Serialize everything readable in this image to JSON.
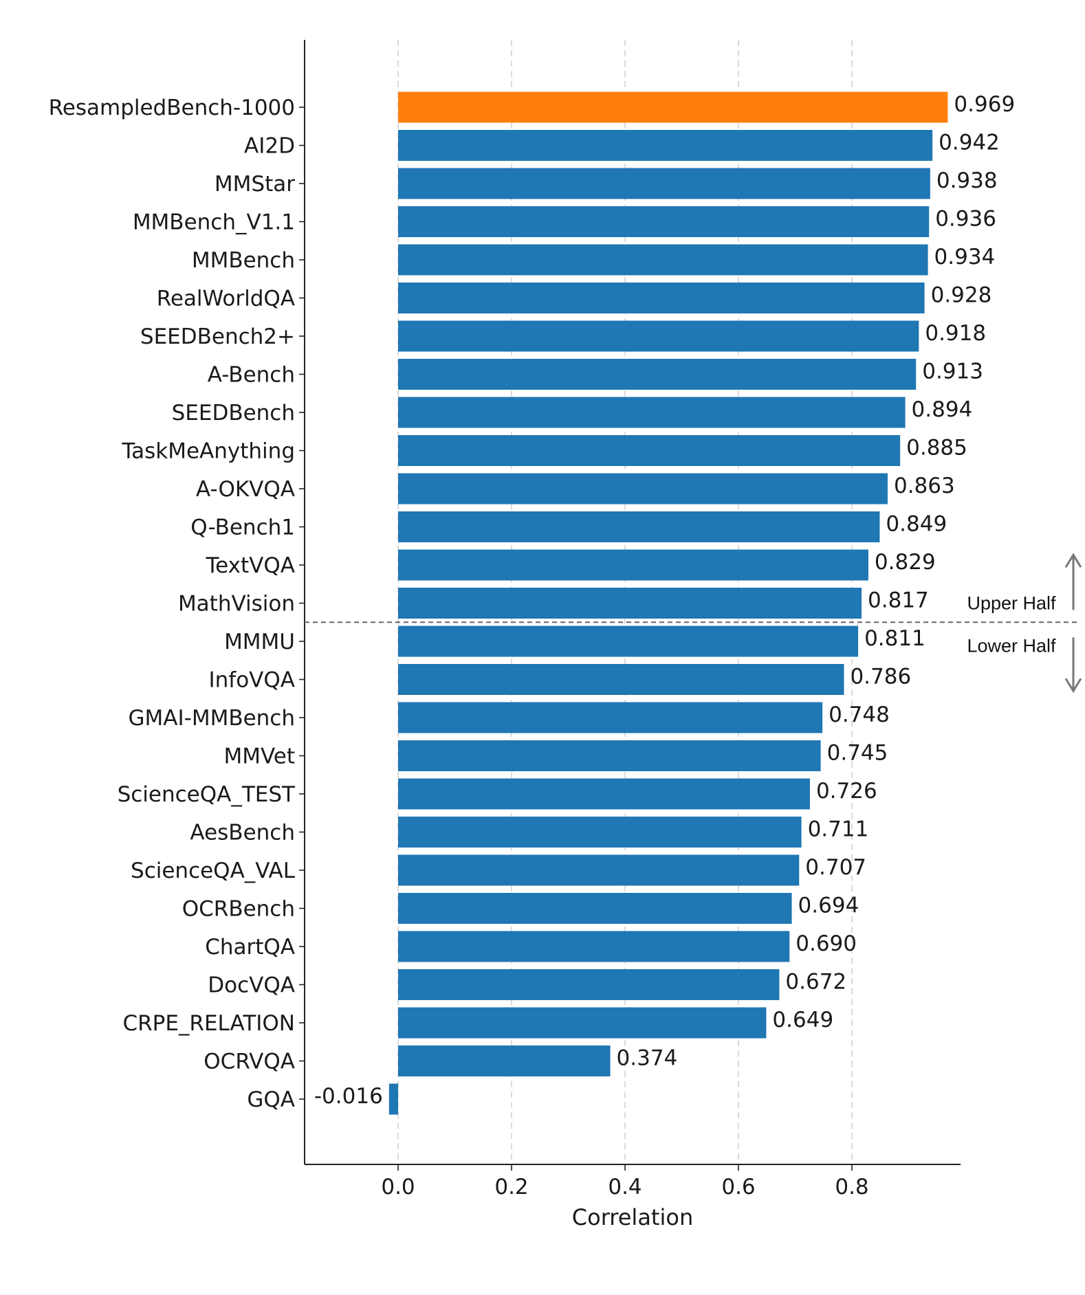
{
  "chart_data": {
    "type": "bar",
    "orientation": "horizontal",
    "xlabel": "Correlation",
    "ylabel": "",
    "xlim": [
      -0.165,
      0.995
    ],
    "xticks": [
      0.0,
      0.2,
      0.4,
      0.6,
      0.8
    ],
    "xtick_labels": [
      "0.0",
      "0.2",
      "0.4",
      "0.6",
      "0.8"
    ],
    "grid": "vertical dashed",
    "highlight_color": "#ff7f0e",
    "bar_color": "#1f77b4",
    "categories": [
      "ResampledBench-1000",
      "AI2D",
      "MMStar",
      "MMBench_V1.1",
      "MMBench",
      "RealWorldQA",
      "SEEDBench2+",
      "A-Bench",
      "SEEDBench",
      "TaskMeAnything",
      "A-OKVQA",
      "Q-Bench1",
      "TextVQA",
      "MathVision",
      "MMMU",
      "InfoVQA",
      "GMAI-MMBench",
      "MMVet",
      "ScienceQA_TEST",
      "AesBench",
      "ScienceQA_VAL",
      "OCRBench",
      "ChartQA",
      "DocVQA",
      "CRPE_RELATION",
      "OCRVQA",
      "GQA"
    ],
    "values": [
      0.969,
      0.942,
      0.938,
      0.936,
      0.934,
      0.928,
      0.918,
      0.913,
      0.894,
      0.885,
      0.863,
      0.849,
      0.829,
      0.817,
      0.811,
      0.786,
      0.748,
      0.745,
      0.726,
      0.711,
      0.707,
      0.694,
      0.69,
      0.672,
      0.649,
      0.374,
      -0.016
    ],
    "value_labels": [
      "0.969",
      "0.942",
      "0.938",
      "0.936",
      "0.934",
      "0.928",
      "0.918",
      "0.913",
      "0.894",
      "0.885",
      "0.863",
      "0.849",
      "0.829",
      "0.817",
      "0.811",
      "0.786",
      "0.748",
      "0.745",
      "0.726",
      "0.711",
      "0.707",
      "0.694",
      "0.690",
      "0.672",
      "0.649",
      "0.374",
      "-0.016"
    ],
    "highlighted_index": 0,
    "split_after_index": 13,
    "annotations": {
      "upper": "Upper Half",
      "lower": "Lower Half"
    }
  }
}
